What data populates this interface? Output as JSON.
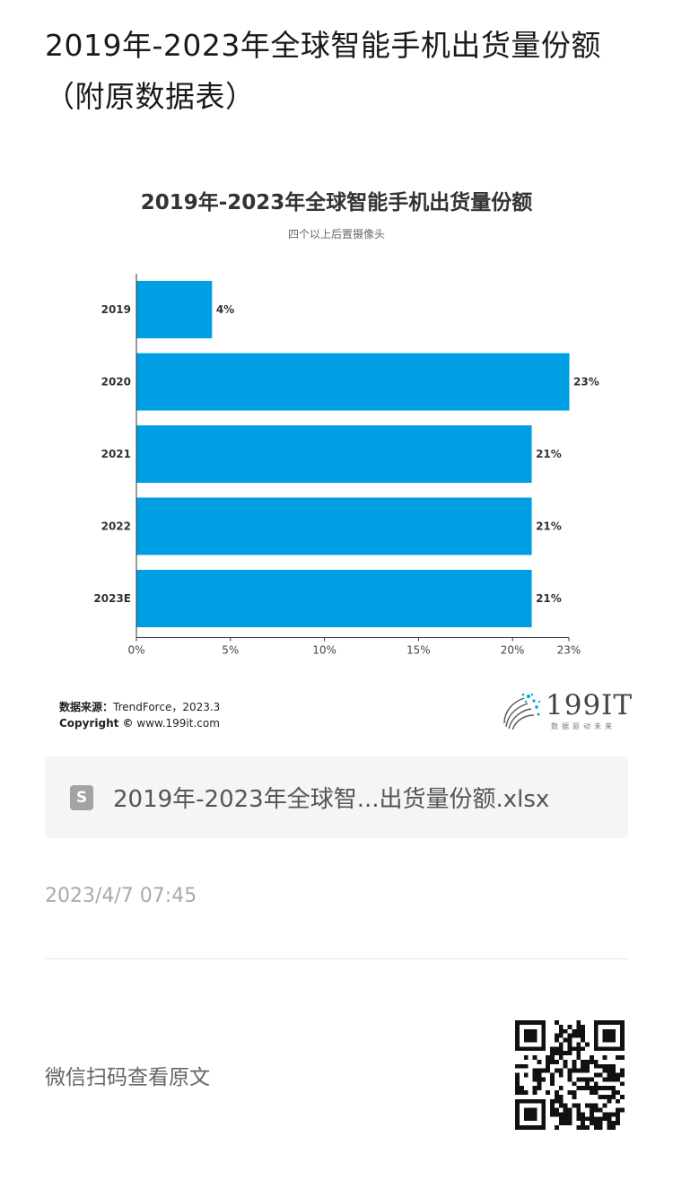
{
  "page": {
    "title": "2019年-2023年全球智能手机出货量份额（附原数据表）"
  },
  "chart_data": {
    "type": "bar",
    "orientation": "horizontal",
    "title": "2019年-2023年全球智能手机出货量份额",
    "subtitle": "四个以上后置摄像头",
    "categories": [
      "2019",
      "2020",
      "2021",
      "2022",
      "2023E"
    ],
    "values": [
      4,
      23,
      21,
      21,
      21
    ],
    "value_labels": [
      "4%",
      "23%",
      "21%",
      "21%",
      "21%"
    ],
    "x_ticks": [
      "0%",
      "5%",
      "10%",
      "15%",
      "20%",
      "23%"
    ],
    "x_tick_values": [
      0,
      5,
      10,
      15,
      20,
      23
    ],
    "xlim": [
      0,
      23
    ],
    "xlabel": "",
    "ylabel": "",
    "bar_color": "#009fe3",
    "grid": false,
    "legend": "none"
  },
  "source": {
    "label": "数据来源：",
    "text": "TrendForce，2023.3",
    "copyright_label": "Copyright ©",
    "copyright_text": "www.199it.com"
  },
  "logo": {
    "text": "199IT",
    "tagline": "数据驱动未来"
  },
  "attachment": {
    "icon": "S",
    "filename": "2019年-2023年全球智...出货量份额.xlsx"
  },
  "post": {
    "time": "2023/4/7 07:45",
    "read_original": "微信扫码查看原文"
  },
  "colors": {
    "accent": "#009fe3",
    "card_bg": "#f5f5f5"
  }
}
